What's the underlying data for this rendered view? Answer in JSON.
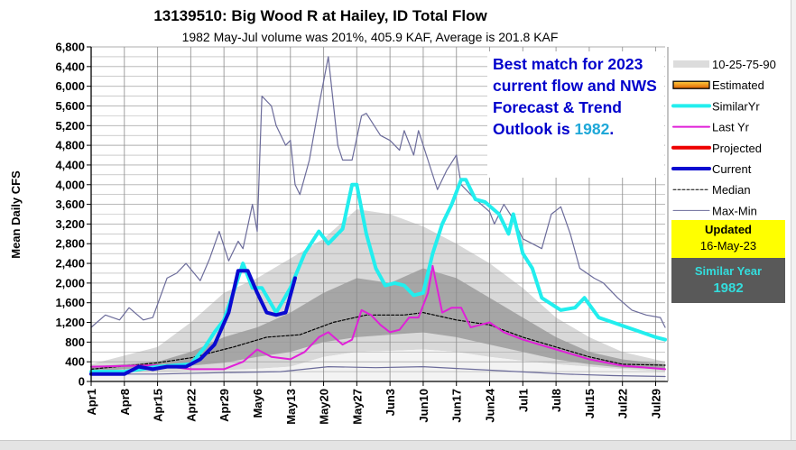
{
  "chart_data": {
    "type": "line",
    "title": "13139510: Big Wood R at Hailey, ID Total Flow",
    "subtitle": "1982 May-Jul volume was 201%, 405.9 KAF, Average is 201.8 KAF",
    "ylabel": "Mean Daily CFS",
    "xlabel": "",
    "x_unit": "days since Apr1",
    "xlim": [
      0,
      121
    ],
    "ylim": [
      0,
      6800
    ],
    "y_ticks": [
      "0",
      "400",
      "800",
      "1,200",
      "1,600",
      "2,000",
      "2,400",
      "2,800",
      "3,200",
      "3,600",
      "4,000",
      "4,400",
      "4,800",
      "5,200",
      "5,600",
      "6,000",
      "6,400",
      "6,800"
    ],
    "x_ticks": [
      {
        "day": 0,
        "label": "Apr1"
      },
      {
        "day": 7,
        "label": "Apr8"
      },
      {
        "day": 14,
        "label": "Apr15"
      },
      {
        "day": 21,
        "label": "Apr22"
      },
      {
        "day": 28,
        "label": "Apr29"
      },
      {
        "day": 35,
        "label": "May6"
      },
      {
        "day": 42,
        "label": "May13"
      },
      {
        "day": 49,
        "label": "May20"
      },
      {
        "day": 56,
        "label": "May27"
      },
      {
        "day": 63,
        "label": "Jun3"
      },
      {
        "day": 70,
        "label": "Jun10"
      },
      {
        "day": 77,
        "label": "Jun17"
      },
      {
        "day": 84,
        "label": "Jun24"
      },
      {
        "day": 91,
        "label": "Jul1"
      },
      {
        "day": 98,
        "label": "Jul8"
      },
      {
        "day": 105,
        "label": "Jul15"
      },
      {
        "day": 112,
        "label": "Jul22"
      },
      {
        "day": 119,
        "label": "Jul29"
      }
    ],
    "grid": true,
    "legend_position": "right",
    "percentile_bands": {
      "days": [
        0,
        14,
        21,
        28,
        35,
        42,
        49,
        56,
        63,
        70,
        77,
        84,
        91,
        98,
        105,
        112,
        121
      ],
      "p10": [
        150,
        200,
        220,
        230,
        260,
        300,
        500,
        600,
        620,
        650,
        600,
        500,
        420,
        350,
        300,
        250,
        200
      ],
      "p25": [
        200,
        300,
        320,
        380,
        500,
        600,
        800,
        900,
        950,
        1000,
        900,
        750,
        600,
        450,
        350,
        280,
        250
      ],
      "p75": [
        300,
        400,
        600,
        900,
        1100,
        1400,
        1800,
        2100,
        2000,
        2300,
        2100,
        1700,
        1300,
        900,
        600,
        450,
        350
      ],
      "p90": [
        350,
        700,
        1200,
        1800,
        2100,
        2500,
        2900,
        3500,
        3400,
        3150,
        2800,
        2400,
        1900,
        1300,
        900,
        600,
        400
      ]
    },
    "series": [
      {
        "name": "Max-Min",
        "key": "max",
        "color": "#6b6b9a",
        "points": [
          [
            0,
            1100
          ],
          [
            3,
            1350
          ],
          [
            6,
            1250
          ],
          [
            8,
            1500
          ],
          [
            11,
            1250
          ],
          [
            13,
            1300
          ],
          [
            16,
            2100
          ],
          [
            18,
            2200
          ],
          [
            20,
            2400
          ],
          [
            23,
            2050
          ],
          [
            25,
            2500
          ],
          [
            27,
            3050
          ],
          [
            29,
            2450
          ],
          [
            31,
            2850
          ],
          [
            32,
            2700
          ],
          [
            34,
            3600
          ],
          [
            35,
            3050
          ],
          [
            36,
            5800
          ],
          [
            38,
            5600
          ],
          [
            39,
            5200
          ],
          [
            41,
            4800
          ],
          [
            42,
            4900
          ],
          [
            43,
            4000
          ],
          [
            44,
            3800
          ],
          [
            46,
            4500
          ],
          [
            48,
            5600
          ],
          [
            50,
            6600
          ],
          [
            52,
            4800
          ],
          [
            53,
            4500
          ],
          [
            55,
            4500
          ],
          [
            57,
            5400
          ],
          [
            58,
            5450
          ],
          [
            61,
            5000
          ],
          [
            63,
            4900
          ],
          [
            65,
            4700
          ],
          [
            66,
            5100
          ],
          [
            68,
            4600
          ],
          [
            69,
            5100
          ],
          [
            71,
            4500
          ],
          [
            73,
            3900
          ],
          [
            75,
            4300
          ],
          [
            77,
            4600
          ],
          [
            78,
            4000
          ],
          [
            81,
            3700
          ],
          [
            84,
            3450
          ],
          [
            85,
            3200
          ],
          [
            87,
            3600
          ],
          [
            89,
            3300
          ],
          [
            91,
            2900
          ],
          [
            93,
            2800
          ],
          [
            95,
            2700
          ],
          [
            97,
            3400
          ],
          [
            99,
            3550
          ],
          [
            101,
            3000
          ],
          [
            103,
            2300
          ],
          [
            106,
            2100
          ],
          [
            108,
            2000
          ],
          [
            111,
            1700
          ],
          [
            114,
            1450
          ],
          [
            117,
            1350
          ],
          [
            120,
            1300
          ],
          [
            121,
            1100
          ]
        ]
      },
      {
        "name": "Min",
        "key": "min",
        "color": "#6b6b9a",
        "points": [
          [
            0,
            150
          ],
          [
            14,
            150
          ],
          [
            28,
            180
          ],
          [
            40,
            200
          ],
          [
            50,
            300
          ],
          [
            60,
            280
          ],
          [
            70,
            300
          ],
          [
            80,
            250
          ],
          [
            90,
            200
          ],
          [
            100,
            150
          ],
          [
            110,
            120
          ],
          [
            121,
            100
          ]
        ]
      },
      {
        "name": "Median",
        "key": "median",
        "color": "#000000",
        "points": [
          [
            0,
            250
          ],
          [
            14,
            380
          ],
          [
            21,
            480
          ],
          [
            30,
            700
          ],
          [
            37,
            900
          ],
          [
            44,
            950
          ],
          [
            51,
            1200
          ],
          [
            58,
            1350
          ],
          [
            66,
            1350
          ],
          [
            70,
            1400
          ],
          [
            77,
            1250
          ],
          [
            84,
            1150
          ],
          [
            91,
            900
          ],
          [
            98,
            700
          ],
          [
            105,
            500
          ],
          [
            112,
            350
          ],
          [
            121,
            330
          ]
        ]
      },
      {
        "name": "Last Yr",
        "key": "lastyr",
        "color": "#e020d8",
        "points": [
          [
            0,
            300
          ],
          [
            14,
            330
          ],
          [
            21,
            250
          ],
          [
            28,
            250
          ],
          [
            32,
            400
          ],
          [
            35,
            650
          ],
          [
            38,
            500
          ],
          [
            42,
            450
          ],
          [
            45,
            600
          ],
          [
            48,
            900
          ],
          [
            50,
            1000
          ],
          [
            53,
            750
          ],
          [
            55,
            850
          ],
          [
            57,
            1450
          ],
          [
            59,
            1350
          ],
          [
            61,
            1150
          ],
          [
            63,
            1000
          ],
          [
            65,
            1050
          ],
          [
            67,
            1300
          ],
          [
            69,
            1300
          ],
          [
            71,
            1800
          ],
          [
            72,
            2350
          ],
          [
            74,
            1400
          ],
          [
            76,
            1500
          ],
          [
            78,
            1500
          ],
          [
            80,
            1100
          ],
          [
            82,
            1150
          ],
          [
            84,
            1200
          ],
          [
            87,
            1000
          ],
          [
            91,
            850
          ],
          [
            98,
            650
          ],
          [
            105,
            450
          ],
          [
            112,
            320
          ],
          [
            121,
            250
          ]
        ]
      },
      {
        "name": "SimilarYr",
        "key": "similar",
        "color": "#22eeee",
        "points": [
          [
            0,
            200
          ],
          [
            7,
            200
          ],
          [
            14,
            300
          ],
          [
            21,
            350
          ],
          [
            24,
            700
          ],
          [
            26,
            1000
          ],
          [
            28,
            1250
          ],
          [
            31,
            2100
          ],
          [
            32,
            2400
          ],
          [
            34,
            1900
          ],
          [
            36,
            1900
          ],
          [
            39,
            1400
          ],
          [
            42,
            1900
          ],
          [
            45,
            2600
          ],
          [
            48,
            3050
          ],
          [
            50,
            2800
          ],
          [
            53,
            3100
          ],
          [
            55,
            4000
          ],
          [
            56,
            4000
          ],
          [
            58,
            3000
          ],
          [
            60,
            2300
          ],
          [
            62,
            1950
          ],
          [
            64,
            2000
          ],
          [
            66,
            1950
          ],
          [
            68,
            1750
          ],
          [
            70,
            1800
          ],
          [
            72,
            2600
          ],
          [
            74,
            3200
          ],
          [
            76,
            3600
          ],
          [
            78,
            4100
          ],
          [
            79,
            4100
          ],
          [
            81,
            3700
          ],
          [
            83,
            3650
          ],
          [
            86,
            3400
          ],
          [
            88,
            3000
          ],
          [
            89,
            3400
          ],
          [
            91,
            2600
          ],
          [
            93,
            2300
          ],
          [
            95,
            1700
          ],
          [
            99,
            1450
          ],
          [
            102,
            1500
          ],
          [
            104,
            1700
          ],
          [
            107,
            1300
          ],
          [
            110,
            1200
          ],
          [
            113,
            1100
          ],
          [
            116,
            1000
          ],
          [
            119,
            900
          ],
          [
            121,
            850
          ]
        ]
      },
      {
        "name": "Current",
        "key": "current",
        "color": "#0a0ad0",
        "points": [
          [
            0,
            150
          ],
          [
            7,
            150
          ],
          [
            10,
            300
          ],
          [
            13,
            250
          ],
          [
            16,
            300
          ],
          [
            20,
            300
          ],
          [
            23,
            450
          ],
          [
            26,
            750
          ],
          [
            29,
            1400
          ],
          [
            31,
            2250
          ],
          [
            33,
            2250
          ],
          [
            35,
            1800
          ],
          [
            37,
            1400
          ],
          [
            39,
            1350
          ],
          [
            41,
            1400
          ],
          [
            43,
            2100
          ]
        ]
      }
    ],
    "legend": [
      {
        "label": "10-25-75-90",
        "style": "band"
      },
      {
        "label": "Estimated",
        "style": "estimated"
      },
      {
        "label": "SimilarYr",
        "style": "line",
        "color": "#22eeee",
        "width": 4
      },
      {
        "label": "Last Yr",
        "style": "line",
        "color": "#e020d8",
        "width": 2
      },
      {
        "label": "Projected",
        "style": "line",
        "color": "#ee0000",
        "width": 4
      },
      {
        "label": "Current",
        "style": "line",
        "color": "#0a0ad0",
        "width": 4
      },
      {
        "label": "Median",
        "style": "dash",
        "color": "#000000",
        "width": 1
      },
      {
        "label": "Max-Min",
        "style": "line",
        "color": "#6b6b9a",
        "width": 1
      }
    ]
  },
  "annotation": {
    "text": "Best match for 2023 current flow and NWS Forecast & Trend Outlook is ",
    "year": "1982",
    "end": "."
  },
  "updated": {
    "label": "Updated",
    "date": "16-May-23"
  },
  "similar_year": {
    "label": "Similar Year",
    "year": "1982"
  }
}
